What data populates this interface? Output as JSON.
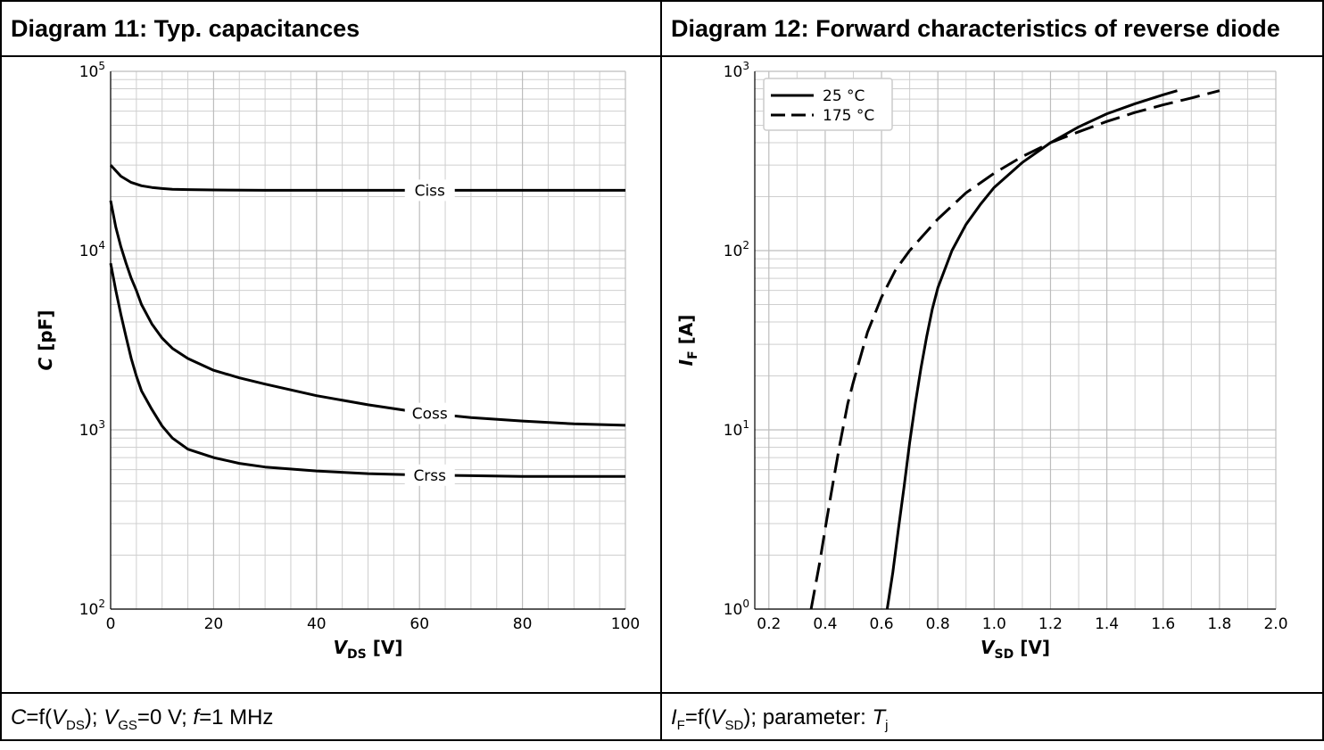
{
  "panels": [
    {
      "title": "Diagram 11: Typ. capacitances",
      "caption": "C=f(VDS); VGS=0 V; f=1 MHz"
    },
    {
      "title": "Diagram 12: Forward characteristics of reverse diode",
      "caption": "IF=f(VSD); parameter: Tj"
    }
  ],
  "chart_data": [
    {
      "type": "line",
      "title": "Diagram 11: Typ. capacitances",
      "xlabel": "VDS [V]",
      "ylabel": "C [pF]",
      "yscale": "log",
      "xlim": [
        0,
        100
      ],
      "ylim": [
        100,
        100000
      ],
      "xticks": [
        "0",
        "20",
        "40",
        "60",
        "80",
        "100"
      ],
      "yticks": [
        "10^2",
        "10^3",
        "10^4",
        "10^5"
      ],
      "grid": true,
      "series": [
        {
          "name": "Ciss",
          "x": [
            0,
            2,
            4,
            6,
            8,
            10,
            12,
            15,
            20,
            30,
            40,
            50,
            60,
            70,
            80,
            90,
            100
          ],
          "y": [
            30000,
            26000,
            24000,
            23000,
            22500,
            22200,
            22000,
            21900,
            21800,
            21700,
            21700,
            21700,
            21700,
            21700,
            21700,
            21700,
            21700
          ]
        },
        {
          "name": "Coss",
          "x": [
            0,
            1,
            2,
            3,
            4,
            5,
            6,
            8,
            10,
            12,
            15,
            20,
            25,
            30,
            40,
            50,
            60,
            70,
            80,
            90,
            100
          ],
          "y": [
            19000,
            13500,
            10500,
            8500,
            7000,
            6000,
            5000,
            3900,
            3250,
            2850,
            2500,
            2150,
            1950,
            1800,
            1550,
            1380,
            1250,
            1170,
            1120,
            1080,
            1060
          ]
        },
        {
          "name": "Crss",
          "x": [
            0,
            1,
            2,
            3,
            4,
            5,
            6,
            8,
            10,
            12,
            15,
            20,
            25,
            30,
            40,
            50,
            60,
            70,
            80,
            90,
            100
          ],
          "y": [
            8500,
            6000,
            4400,
            3300,
            2500,
            2000,
            1650,
            1300,
            1050,
            900,
            780,
            700,
            650,
            620,
            590,
            570,
            560,
            555,
            550,
            550,
            550
          ]
        }
      ]
    },
    {
      "type": "line",
      "title": "Diagram 12: Forward characteristics of reverse diode",
      "xlabel": "VSD [V]",
      "ylabel": "IF [A]",
      "yscale": "log",
      "xlim": [
        0.15,
        2.0
      ],
      "ylim": [
        1,
        1000
      ],
      "xticks": [
        "0.2",
        "0.4",
        "0.6",
        "0.8",
        "1.0",
        "1.2",
        "1.4",
        "1.6",
        "1.8",
        "2.0"
      ],
      "yticks": [
        "10^0",
        "10^1",
        "10^2",
        "10^3"
      ],
      "grid": true,
      "legend": "top-left",
      "series": [
        {
          "name": "25 °C",
          "style": "solid",
          "x": [
            0.62,
            0.64,
            0.66,
            0.68,
            0.7,
            0.72,
            0.74,
            0.76,
            0.78,
            0.8,
            0.85,
            0.9,
            0.95,
            1.0,
            1.1,
            1.2,
            1.3,
            1.4,
            1.5,
            1.6,
            1.65
          ],
          "y": [
            1,
            1.6,
            2.8,
            4.8,
            8.5,
            14,
            22,
            33,
            47,
            62,
            100,
            140,
            180,
            225,
            310,
            400,
            490,
            580,
            660,
            740,
            780
          ]
        },
        {
          "name": "175 °C",
          "style": "dashed",
          "x": [
            0.35,
            0.38,
            0.4,
            0.42,
            0.45,
            0.48,
            0.5,
            0.55,
            0.6,
            0.65,
            0.7,
            0.8,
            0.9,
            1.0,
            1.1,
            1.2,
            1.3,
            1.4,
            1.5,
            1.6,
            1.7,
            1.8
          ],
          "y": [
            1,
            1.8,
            2.8,
            4.3,
            8,
            14,
            18.5,
            35,
            55,
            78,
            100,
            150,
            210,
            270,
            335,
            400,
            460,
            525,
            590,
            650,
            710,
            780
          ]
        }
      ]
    }
  ]
}
